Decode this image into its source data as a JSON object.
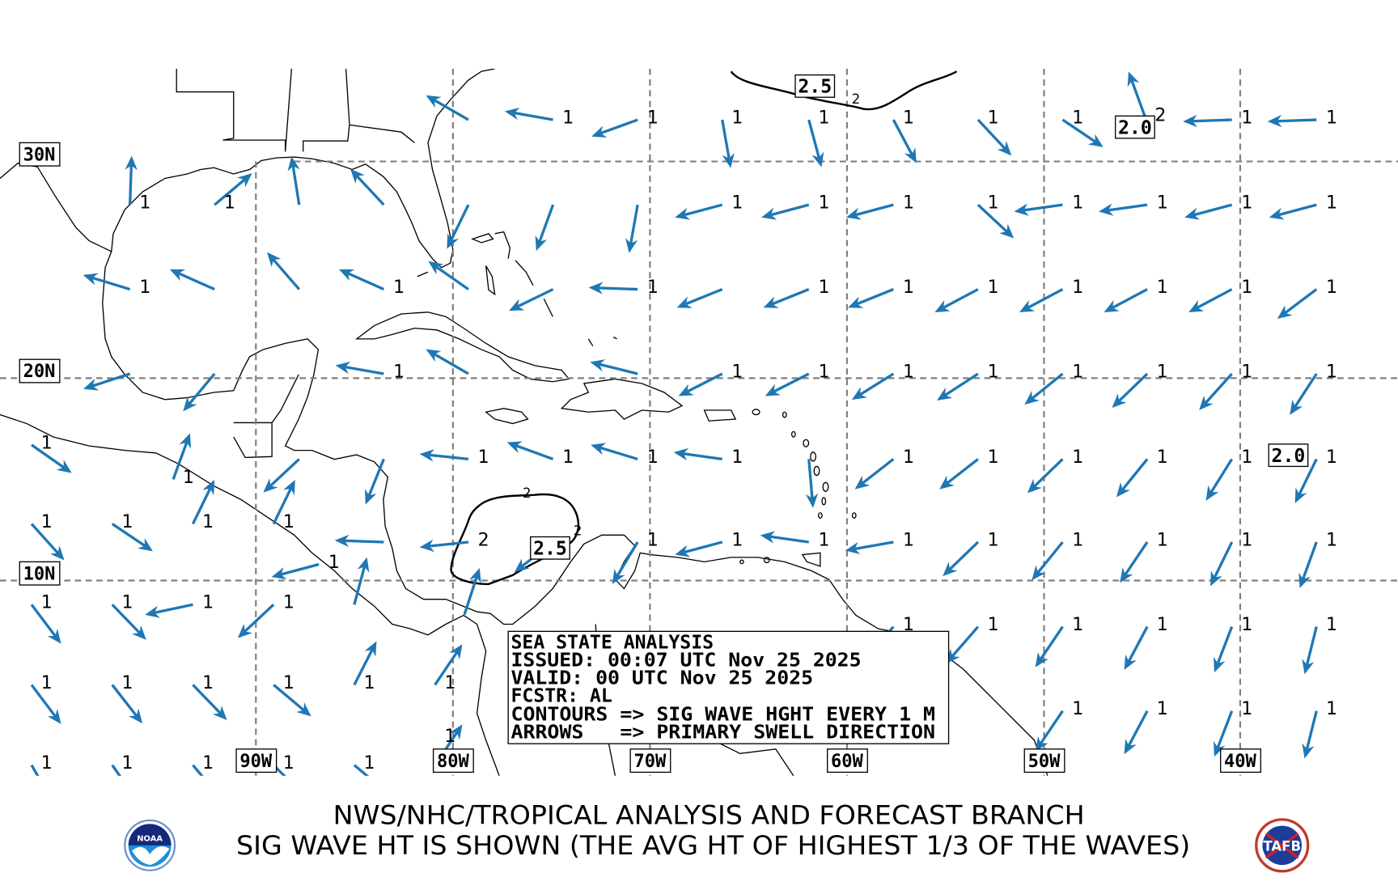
{
  "map": {
    "lat_labels": [
      "30N",
      "20N",
      "10N"
    ],
    "lon_labels": [
      "90W",
      "80W",
      "70W",
      "60W",
      "50W",
      "40W"
    ],
    "arrow_color": "#1f77b4",
    "contour_box_labels": [
      "2.5",
      "2.0",
      "2.0",
      "2.5"
    ],
    "contour_line_labels": [
      "2",
      "2",
      "2"
    ],
    "arrows": [
      {
        "lon": -79.2,
        "lat": 31.9,
        "dir": 300,
        "h": ""
      },
      {
        "lon": -74.9,
        "lat": 31.9,
        "dir": 280,
        "h": "1"
      },
      {
        "lon": -70.6,
        "lat": 31.9,
        "dir": 250,
        "h": "1"
      },
      {
        "lon": -66.3,
        "lat": 31.9,
        "dir": 170,
        "h": "1"
      },
      {
        "lon": -61.9,
        "lat": 31.9,
        "dir": 165,
        "h": "1"
      },
      {
        "lon": -57.6,
        "lat": 31.9,
        "dir": 152,
        "h": "1"
      },
      {
        "lon": -53.3,
        "lat": 31.9,
        "dir": 137,
        "h": "1"
      },
      {
        "lon": -49.0,
        "lat": 31.9,
        "dir": 124,
        "h": "1"
      },
      {
        "lon": -44.8,
        "lat": 32.0,
        "dir": 340,
        "h": "2"
      },
      {
        "lon": -40.4,
        "lat": 31.9,
        "dir": 268,
        "h": "1"
      },
      {
        "lon": -36.1,
        "lat": 31.9,
        "dir": 268,
        "h": "1"
      },
      {
        "lon": -96.4,
        "lat": 28.0,
        "dir": 2,
        "h": "1"
      },
      {
        "lon": -92.1,
        "lat": 28.0,
        "dir": 50,
        "h": "1"
      },
      {
        "lon": -87.8,
        "lat": 28.0,
        "dir": 351,
        "h": ""
      },
      {
        "lon": -83.5,
        "lat": 28.0,
        "dir": 317,
        "h": ""
      },
      {
        "lon": -79.2,
        "lat": 28.0,
        "dir": 206,
        "h": ""
      },
      {
        "lon": -74.9,
        "lat": 28.0,
        "dir": 200,
        "h": ""
      },
      {
        "lon": -70.6,
        "lat": 28.0,
        "dir": 190,
        "h": ""
      },
      {
        "lon": -66.3,
        "lat": 28.0,
        "dir": 255,
        "h": "1"
      },
      {
        "lon": -61.9,
        "lat": 28.0,
        "dir": 255,
        "h": "1"
      },
      {
        "lon": -57.6,
        "lat": 28.0,
        "dir": 255,
        "h": "1"
      },
      {
        "lon": -53.3,
        "lat": 28.0,
        "dir": 133,
        "h": "1"
      },
      {
        "lon": -49.0,
        "lat": 28.0,
        "dir": 262,
        "h": "1"
      },
      {
        "lon": -44.7,
        "lat": 28.0,
        "dir": 262,
        "h": "1"
      },
      {
        "lon": -40.4,
        "lat": 28.0,
        "dir": 255,
        "h": "1"
      },
      {
        "lon": -36.1,
        "lat": 28.0,
        "dir": 255,
        "h": "1"
      },
      {
        "lon": -96.4,
        "lat": 24.1,
        "dir": 287,
        "h": "1"
      },
      {
        "lon": -92.1,
        "lat": 24.1,
        "dir": 294,
        "h": ""
      },
      {
        "lon": -87.8,
        "lat": 24.1,
        "dir": 319,
        "h": ""
      },
      {
        "lon": -83.5,
        "lat": 24.1,
        "dir": 294,
        "h": "1"
      },
      {
        "lon": -79.2,
        "lat": 24.1,
        "dir": 305,
        "h": ""
      },
      {
        "lon": -74.9,
        "lat": 24.1,
        "dir": 244,
        "h": ""
      },
      {
        "lon": -70.6,
        "lat": 24.1,
        "dir": 272,
        "h": "1"
      },
      {
        "lon": -66.3,
        "lat": 24.1,
        "dir": 248,
        "h": ""
      },
      {
        "lon": -61.9,
        "lat": 24.1,
        "dir": 248,
        "h": "1"
      },
      {
        "lon": -57.6,
        "lat": 24.1,
        "dir": 248,
        "h": "1"
      },
      {
        "lon": -53.3,
        "lat": 24.1,
        "dir": 242,
        "h": "1"
      },
      {
        "lon": -49.0,
        "lat": 24.1,
        "dir": 242,
        "h": "1"
      },
      {
        "lon": -44.7,
        "lat": 24.1,
        "dir": 242,
        "h": "1"
      },
      {
        "lon": -40.4,
        "lat": 24.1,
        "dir": 242,
        "h": "1"
      },
      {
        "lon": -36.1,
        "lat": 24.1,
        "dir": 233,
        "h": "1"
      },
      {
        "lon": -96.4,
        "lat": 20.2,
        "dir": 252,
        "h": ""
      },
      {
        "lon": -92.1,
        "lat": 20.2,
        "dir": 220,
        "h": ""
      },
      {
        "lon": -83.5,
        "lat": 20.2,
        "dir": 280,
        "h": "1"
      },
      {
        "lon": -79.2,
        "lat": 20.2,
        "dir": 300,
        "h": ""
      },
      {
        "lon": -70.6,
        "lat": 20.2,
        "dir": 284,
        "h": ""
      },
      {
        "lon": -66.3,
        "lat": 20.2,
        "dir": 243,
        "h": "1"
      },
      {
        "lon": -61.9,
        "lat": 20.2,
        "dir": 243,
        "h": "1"
      },
      {
        "lon": -57.6,
        "lat": 20.2,
        "dir": 238,
        "h": "1"
      },
      {
        "lon": -53.3,
        "lat": 20.2,
        "dir": 237,
        "h": "1"
      },
      {
        "lon": -49.0,
        "lat": 20.2,
        "dir": 231,
        "h": "1"
      },
      {
        "lon": -44.7,
        "lat": 20.2,
        "dir": 226,
        "h": "1"
      },
      {
        "lon": -40.4,
        "lat": 20.2,
        "dir": 222,
        "h": "1"
      },
      {
        "lon": -36.1,
        "lat": 20.2,
        "dir": 213,
        "h": "1"
      },
      {
        "lon": -101.4,
        "lat": 16.7,
        "dir": 125,
        "h": "1"
      },
      {
        "lon": -94.2,
        "lat": 15.0,
        "dir": 20,
        "h": "1"
      },
      {
        "lon": -87.8,
        "lat": 16.0,
        "dir": 227,
        "h": ""
      },
      {
        "lon": -83.5,
        "lat": 16.0,
        "dir": 202,
        "h": ""
      },
      {
        "lon": -79.2,
        "lat": 16.0,
        "dir": 276,
        "h": "1"
      },
      {
        "lon": -74.9,
        "lat": 16.0,
        "dir": 290,
        "h": "1"
      },
      {
        "lon": -70.6,
        "lat": 16.0,
        "dir": 287,
        "h": "1"
      },
      {
        "lon": -66.3,
        "lat": 16.0,
        "dir": 278,
        "h": "1"
      },
      {
        "lon": -61.9,
        "lat": 16.0,
        "dir": 175,
        "h": ""
      },
      {
        "lon": -57.6,
        "lat": 16.0,
        "dir": 232,
        "h": "1"
      },
      {
        "lon": -53.3,
        "lat": 16.0,
        "dir": 232,
        "h": "1"
      },
      {
        "lon": -49.0,
        "lat": 16.0,
        "dir": 226,
        "h": "1"
      },
      {
        "lon": -44.7,
        "lat": 16.0,
        "dir": 219,
        "h": "1"
      },
      {
        "lon": -40.4,
        "lat": 16.0,
        "dir": 212,
        "h": "1"
      },
      {
        "lon": -36.1,
        "lat": 16.0,
        "dir": 206,
        "h": "1"
      },
      {
        "lon": -101.4,
        "lat": 12.8,
        "dir": 138,
        "h": "1"
      },
      {
        "lon": -97.3,
        "lat": 12.8,
        "dir": 124,
        "h": "1"
      },
      {
        "lon": -93.2,
        "lat": 12.8,
        "dir": 26,
        "h": "1"
      },
      {
        "lon": -89.1,
        "lat": 12.8,
        "dir": 26,
        "h": "1"
      },
      {
        "lon": -83.5,
        "lat": 11.9,
        "dir": 272,
        "h": ""
      },
      {
        "lon": -79.2,
        "lat": 11.9,
        "dir": 264,
        "h": "2"
      },
      {
        "lon": -74.9,
        "lat": 11.9,
        "dir": 232,
        "h": ""
      },
      {
        "lon": -70.6,
        "lat": 11.9,
        "dir": 211,
        "h": "1"
      },
      {
        "lon": -66.3,
        "lat": 11.9,
        "dir": 255,
        "h": "1"
      },
      {
        "lon": -61.9,
        "lat": 11.9,
        "dir": 278,
        "h": "1"
      },
      {
        "lon": -57.6,
        "lat": 11.9,
        "dir": 260,
        "h": "1"
      },
      {
        "lon": -53.3,
        "lat": 11.9,
        "dir": 226,
        "h": "1"
      },
      {
        "lon": -49.0,
        "lat": 11.9,
        "dir": 219,
        "h": "1"
      },
      {
        "lon": -44.7,
        "lat": 11.9,
        "dir": 214,
        "h": "1"
      },
      {
        "lon": -40.4,
        "lat": 11.9,
        "dir": 206,
        "h": "1"
      },
      {
        "lon": -36.1,
        "lat": 11.9,
        "dir": 200,
        "h": "1"
      },
      {
        "lon": -86.8,
        "lat": 10.8,
        "dir": 255,
        "h": "1"
      },
      {
        "lon": -101.4,
        "lat": 8.8,
        "dir": 143,
        "h": "1"
      },
      {
        "lon": -97.3,
        "lat": 8.8,
        "dir": 136,
        "h": "1"
      },
      {
        "lon": -93.2,
        "lat": 8.8,
        "dir": 258,
        "h": "1"
      },
      {
        "lon": -89.1,
        "lat": 8.8,
        "dir": 227,
        "h": "1"
      },
      {
        "lon": -85.0,
        "lat": 8.8,
        "dir": 15,
        "h": ""
      },
      {
        "lon": -79.4,
        "lat": 8.3,
        "dir": 18,
        "h": ""
      },
      {
        "lon": -57.6,
        "lat": 7.7,
        "dir": 221,
        "h": "1"
      },
      {
        "lon": -53.3,
        "lat": 7.7,
        "dir": 221,
        "h": "1"
      },
      {
        "lon": -49.0,
        "lat": 7.7,
        "dir": 214,
        "h": "1"
      },
      {
        "lon": -44.7,
        "lat": 7.7,
        "dir": 208,
        "h": "1"
      },
      {
        "lon": -40.4,
        "lat": 7.7,
        "dir": 201,
        "h": "1"
      },
      {
        "lon": -36.1,
        "lat": 7.7,
        "dir": 194,
        "h": "1"
      },
      {
        "lon": -101.4,
        "lat": 4.8,
        "dir": 143,
        "h": "1"
      },
      {
        "lon": -97.3,
        "lat": 4.8,
        "dir": 142,
        "h": "1"
      },
      {
        "lon": -93.2,
        "lat": 4.8,
        "dir": 136,
        "h": "1"
      },
      {
        "lon": -89.1,
        "lat": 4.8,
        "dir": 130,
        "h": "1"
      },
      {
        "lon": -85.0,
        "lat": 4.8,
        "dir": 27,
        "h": "1"
      },
      {
        "lon": -80.9,
        "lat": 4.8,
        "dir": 34,
        "h": "1"
      },
      {
        "lon": -49.0,
        "lat": 3.5,
        "dir": 214,
        "h": "1"
      },
      {
        "lon": -44.7,
        "lat": 3.5,
        "dir": 208,
        "h": "1"
      },
      {
        "lon": -40.4,
        "lat": 3.5,
        "dir": 201,
        "h": "1"
      },
      {
        "lon": -36.1,
        "lat": 3.5,
        "dir": 194,
        "h": "1"
      },
      {
        "lon": -101.4,
        "lat": 0.8,
        "dir": 150,
        "h": "1"
      },
      {
        "lon": -97.3,
        "lat": 0.8,
        "dir": 145,
        "h": "1"
      },
      {
        "lon": -93.2,
        "lat": 0.8,
        "dir": 140,
        "h": "1"
      },
      {
        "lon": -89.1,
        "lat": 0.8,
        "dir": 135,
        "h": "1"
      },
      {
        "lon": -85.0,
        "lat": 0.8,
        "dir": 130,
        "h": "1"
      },
      {
        "lon": -80.9,
        "lat": 0.8,
        "dir": 34,
        "h": "1"
      }
    ]
  },
  "info_box": {
    "line1": "SEA STATE ANALYSIS",
    "line2": "ISSUED: 00:07 UTC Nov 25 2025",
    "line3": "VALID: 00 UTC Nov 25 2025",
    "line4": "FCSTR: AL",
    "line5": "CONTOURS => SIG WAVE HGHT EVERY 1 M",
    "line6": "ARROWS   => PRIMARY SWELL DIRECTION"
  },
  "footer": {
    "line1": "NWS/NHC/TROPICAL ANALYSIS AND FORECAST BRANCH",
    "line2": "SIG WAVE HT IS SHOWN (THE AVG HT OF HIGHEST 1/3 OF THE WAVES)",
    "logo_left": "NOAA",
    "logo_right": "TAFB"
  }
}
